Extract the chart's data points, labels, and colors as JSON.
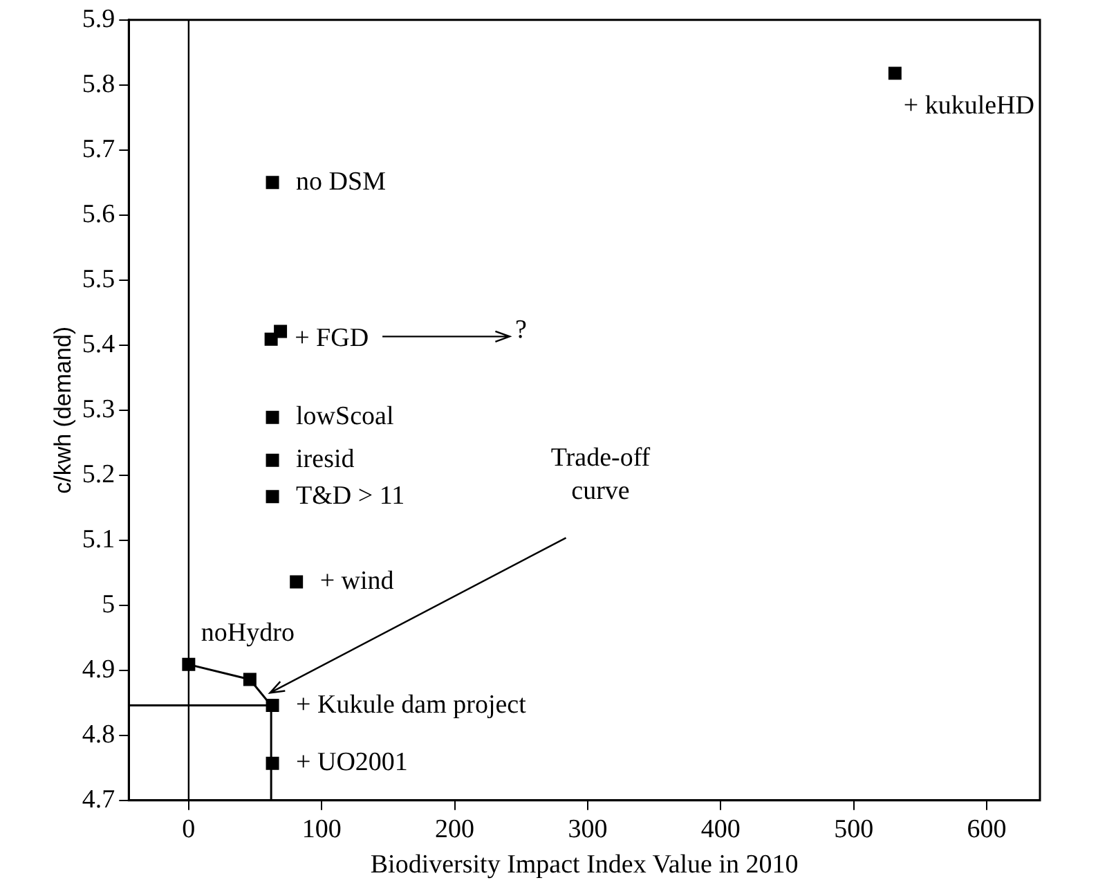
{
  "chart_data": {
    "type": "scatter",
    "xlabel": "Biodiversity Impact Index Value in 2010",
    "ylabel": "c/kwh (demand)",
    "xlim": [
      -45,
      640
    ],
    "xticks": [
      0,
      100,
      200,
      300,
      400,
      500,
      600
    ],
    "ylim": [
      4.7,
      5.9
    ],
    "yticks": [
      4.7,
      4.8,
      4.9,
      5,
      5.1,
      5.2,
      5.3,
      5.4,
      5.5,
      5.6,
      5.7,
      5.8,
      5.9
    ],
    "grid": false,
    "legend": false,
    "marker": "square",
    "series": [
      {
        "color": "#000000",
        "x": [
          531,
          63,
          62,
          69,
          63,
          63,
          63,
          81,
          0,
          46,
          63,
          63
        ],
        "values": [
          5.818,
          5.65,
          5.409,
          5.421,
          5.289,
          5.223,
          5.167,
          5.036,
          4.909,
          4.886,
          4.846,
          4.757
        ]
      },
      {
        "type": "line",
        "color": "#000000",
        "marker": "none",
        "x": [
          0,
          46,
          62,
          62
        ],
        "values": [
          4.909,
          4.886,
          4.846,
          4.7
        ]
      },
      {
        "type": "line",
        "color": "#000000",
        "marker": "none",
        "x": [
          -45,
          62
        ],
        "values": [
          4.846,
          4.846
        ]
      }
    ],
    "ref_lines": [
      {
        "axis": "x",
        "value": 0,
        "color": "#000000"
      }
    ],
    "annotations": [
      {
        "text": "+ kukuleHD",
        "x": 531,
        "y": 5.818
      },
      {
        "text": "no DSM",
        "x": 63,
        "y": 5.65
      },
      {
        "text": "+ FGD",
        "x": 62,
        "y": 5.409
      },
      "?",
      {
        "text": "lowScoal",
        "x": 63,
        "y": 5.289
      },
      {
        "text": "iresid",
        "x": 63,
        "y": 5.223
      },
      {
        "text": "T&D > 11",
        "x": 63,
        "y": 5.167
      },
      {
        "text": "+ wind",
        "x": 81,
        "y": 5.036
      },
      {
        "text": "noHydro",
        "x": 0,
        "y": 4.909
      },
      {
        "text": "+ Kukule dam project",
        "x": 63,
        "y": 4.846
      },
      {
        "text": "+ UO2001",
        "x": 63,
        "y": 4.757
      },
      {
        "text": "Trade-off\ncurve",
        "x": 57,
        "y": 4.859
      }
    ]
  }
}
